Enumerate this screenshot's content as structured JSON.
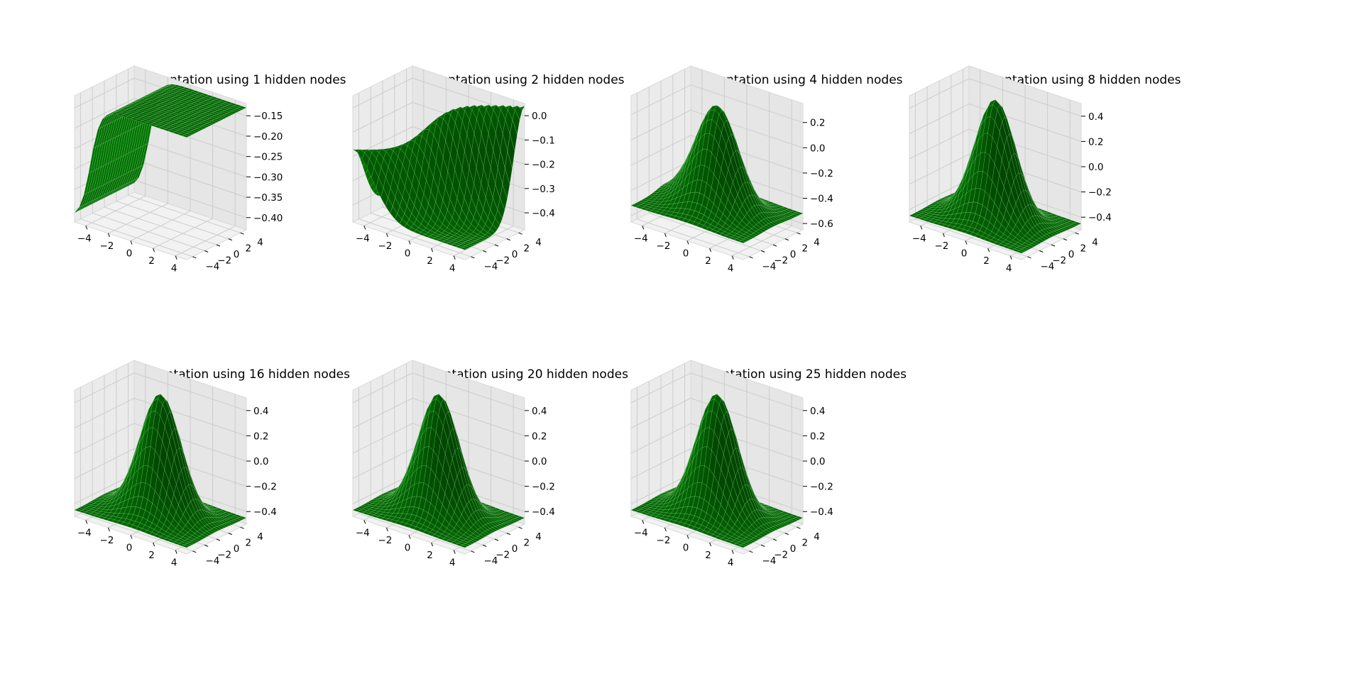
{
  "chart_data": [
    {
      "type": "surface3d",
      "title": "Representation using 1 hidden nodes",
      "shape": "sigmoid-step",
      "surface_color": "#006400",
      "x_ticks": [
        -4,
        -2,
        0,
        2,
        4
      ],
      "y_ticks": [
        -4,
        -2,
        0,
        2,
        4
      ],
      "z_ticks": [
        "−0.15",
        "−0.20",
        "−0.25",
        "−0.30",
        "−0.35",
        "−0.40"
      ],
      "x_range": [
        -5,
        5
      ],
      "y_range": [
        -5,
        5
      ],
      "zlim": [
        -0.43,
        -0.12
      ],
      "grid": true
    },
    {
      "type": "surface3d",
      "title": "Representation using 2 hidden nodes",
      "shape": "diagonal-ridge",
      "surface_color": "#006400",
      "x_ticks": [
        -4,
        -2,
        0,
        2,
        4
      ],
      "y_ticks": [
        -4,
        -2,
        0,
        2,
        4
      ],
      "z_ticks": [
        "0.0",
        "−0.1",
        "−0.2",
        "−0.3",
        "−0.4"
      ],
      "x_range": [
        -5,
        5
      ],
      "y_range": [
        -5,
        5
      ],
      "zlim": [
        -0.47,
        0.05
      ],
      "grid": true
    },
    {
      "type": "surface3d",
      "title": "Representation using 4 hidden nodes",
      "shape": "peak-with-dip",
      "surface_color": "#006400",
      "x_ticks": [
        -4,
        -2,
        0,
        2,
        4
      ],
      "y_ticks": [
        -4,
        -2,
        0,
        2,
        4
      ],
      "z_ticks": [
        "0.2",
        "0.0",
        "−0.2",
        "−0.4",
        "−0.6"
      ],
      "x_range": [
        -5,
        5
      ],
      "y_range": [
        -5,
        5
      ],
      "zlim": [
        -0.65,
        0.35
      ],
      "grid": true
    },
    {
      "type": "surface3d",
      "title": "Representation using 8 hidden nodes",
      "shape": "gaussian",
      "surface_color": "#006400",
      "x_ticks": [
        -4,
        -2,
        0,
        2,
        4
      ],
      "y_ticks": [
        -4,
        -2,
        0,
        2,
        4
      ],
      "z_ticks": [
        "0.4",
        "0.2",
        "0.0",
        "−0.2",
        "−0.4"
      ],
      "x_range": [
        -5,
        5
      ],
      "y_range": [
        -5,
        5
      ],
      "zlim": [
        -0.5,
        0.5
      ],
      "grid": true
    },
    {
      "type": "surface3d",
      "title": "Representation using 16 hidden nodes",
      "shape": "gaussian",
      "surface_color": "#006400",
      "x_ticks": [
        -4,
        -2,
        0,
        2,
        4
      ],
      "y_ticks": [
        -4,
        -2,
        0,
        2,
        4
      ],
      "z_ticks": [
        "0.4",
        "0.2",
        "0.0",
        "−0.2",
        "−0.4"
      ],
      "x_range": [
        -5,
        5
      ],
      "y_range": [
        -5,
        5
      ],
      "zlim": [
        -0.5,
        0.5
      ],
      "grid": true
    },
    {
      "type": "surface3d",
      "title": "Representation using 20 hidden nodes",
      "shape": "gaussian",
      "surface_color": "#006400",
      "x_ticks": [
        -4,
        -2,
        0,
        2,
        4
      ],
      "y_ticks": [
        -4,
        -2,
        0,
        2,
        4
      ],
      "z_ticks": [
        "0.4",
        "0.2",
        "0.0",
        "−0.2",
        "−0.4"
      ],
      "x_range": [
        -5,
        5
      ],
      "y_range": [
        -5,
        5
      ],
      "zlim": [
        -0.5,
        0.5
      ],
      "grid": true
    },
    {
      "type": "surface3d",
      "title": "Representation using 25 hidden nodes",
      "shape": "gaussian",
      "surface_color": "#006400",
      "x_ticks": [
        -4,
        -2,
        0,
        2,
        4
      ],
      "y_ticks": [
        -4,
        -2,
        0,
        2,
        4
      ],
      "z_ticks": [
        "0.4",
        "0.2",
        "0.0",
        "−0.2",
        "−0.4"
      ],
      "x_range": [
        -5,
        5
      ],
      "y_range": [
        -5,
        5
      ],
      "zlim": [
        -0.5,
        0.5
      ],
      "grid": true
    }
  ]
}
